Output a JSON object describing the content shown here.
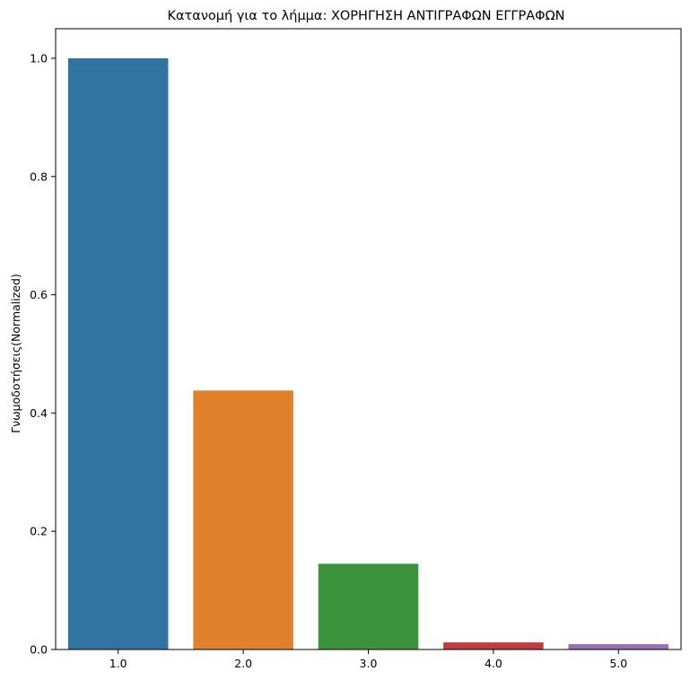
{
  "chart_data": {
    "type": "bar",
    "title": "Κατανομή για το λήμμα: ΧΟΡΗΓΗΣΗ ΑΝΤΙΓΡΑΦΩΝ ΕΓΓΡΑΦΩΝ",
    "xlabel": "",
    "ylabel": "Γνωμοδοτήσεις(Normalized)",
    "categories": [
      "1.0",
      "2.0",
      "3.0",
      "4.0",
      "5.0"
    ],
    "values": [
      1.0,
      0.438,
      0.145,
      0.012,
      0.009
    ],
    "colors": [
      "#3274a1",
      "#e1812c",
      "#3a923a",
      "#c03d3e",
      "#9372b2"
    ],
    "ylim": [
      0,
      1.05
    ],
    "yticks": [
      0.0,
      0.2,
      0.4,
      0.6,
      0.8,
      1.0
    ],
    "yticklabels": [
      "0.0",
      "0.2",
      "0.4",
      "0.6",
      "0.8",
      "1.0"
    ],
    "grid": false,
    "legend": "none"
  }
}
